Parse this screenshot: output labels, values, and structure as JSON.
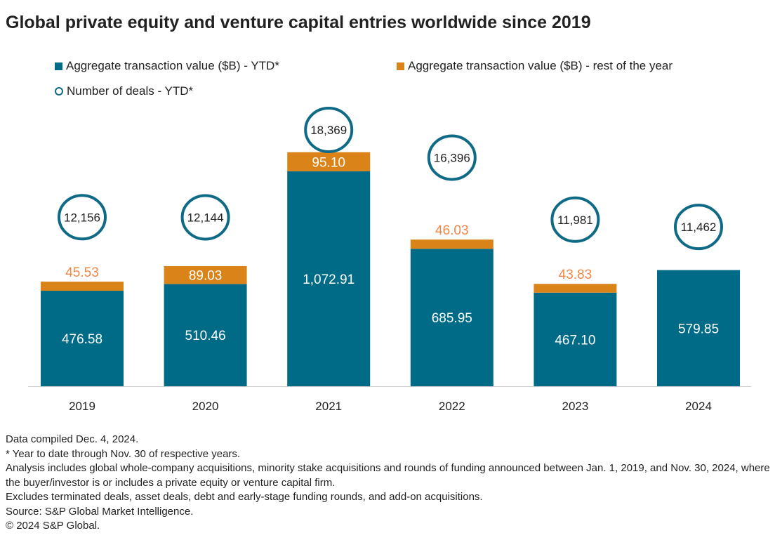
{
  "title": "Global private equity and venture capital entries worldwide since 2019",
  "chart_data": {
    "type": "bar",
    "stacked": true,
    "categories": [
      "2019",
      "2020",
      "2021",
      "2022",
      "2023",
      "2024"
    ],
    "series": [
      {
        "name": "Aggregate transaction value ($B) - YTD*",
        "values": [
          476.58,
          510.46,
          1072.91,
          685.95,
          467.1,
          579.85
        ],
        "labels": [
          "476.58",
          "510.46",
          "1,072.91",
          "685.95",
          "467.10",
          "579.85"
        ],
        "color": "#006b87"
      },
      {
        "name": "Aggregate transaction value ($B) - rest of the year",
        "values": [
          45.53,
          89.03,
          95.1,
          46.03,
          43.83,
          null
        ],
        "labels": [
          "45.53",
          "89.03",
          "95.10",
          "46.03",
          "43.83",
          ""
        ],
        "color": "#da8318"
      },
      {
        "name": "Number of deals - YTD*",
        "type": "circle-marker",
        "values": [
          12156,
          12144,
          18369,
          16396,
          11981,
          11462
        ],
        "labels": [
          "12,156",
          "12,144",
          "18,369",
          "16,396",
          "11,981",
          "11,462"
        ],
        "color": "#0f6a85"
      }
    ],
    "label_outside_color": "#f0884a",
    "legend_position": "top-left",
    "grid": false
  },
  "notes": [
    "Data compiled Dec. 4, 2024.",
    "* Year to date through Nov. 30 of respective years.",
    "Analysis includes global whole-company acquisitions, minority stake acquisitions and rounds of funding announced between Jan. 1, 2019, and Nov. 30, 2024, where the buyer/investor is or includes a private equity or venture capital firm.",
    "Excludes terminated deals, asset deals, debt and early-stage funding rounds, and add-on acquisitions.",
    "Source: S&P Global Market Intelligence.",
    "© 2024 S&P Global."
  ]
}
